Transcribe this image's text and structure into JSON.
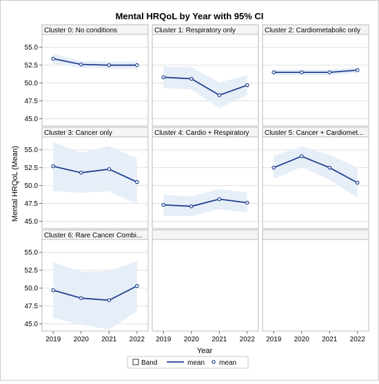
{
  "title": "Mental HRQoL by Year with 95% CI",
  "xlabel": "Year",
  "ylabel": "Mental HRQoL (Mean)",
  "colors": {
    "line": "#1f3f8f",
    "band": "#e6eef8",
    "grid": "#e0e0e0",
    "header_bg": "#f5f5f5",
    "frame": "#b9b9b9"
  },
  "legend": {
    "position": "bottom",
    "items": [
      {
        "label": "Band",
        "kind": "band-square"
      },
      {
        "label": "mean",
        "kind": "line"
      },
      {
        "label": "mean",
        "kind": "marker"
      }
    ]
  },
  "chart_data": {
    "type": "line",
    "panel_layout": "3x3 grid, shared axes",
    "x": [
      2019,
      2020,
      2021,
      2022
    ],
    "xlim": [
      2018.6,
      2022.4
    ],
    "ylim": [
      44,
      56.8
    ],
    "xticks": [
      "2019",
      "2020",
      "2021",
      "2022"
    ],
    "yticks": [
      "45.0",
      "47.5",
      "50.0",
      "52.5",
      "55.0"
    ],
    "ytick_values": [
      45,
      47.5,
      50,
      52.5,
      55
    ],
    "grid": "horizontal",
    "panels": [
      {
        "title": "Cluster 0: No conditions",
        "mean": [
          53.4,
          52.6,
          52.5,
          52.5
        ],
        "lower": [
          52.7,
          52.1,
          52.0,
          52.0
        ],
        "upper": [
          54.1,
          53.1,
          53.0,
          53.0
        ]
      },
      {
        "title": "Cluster 1: Respiratory only",
        "mean": [
          50.8,
          50.6,
          48.3,
          49.7
        ],
        "lower": [
          49.3,
          49.1,
          46.5,
          48.3
        ],
        "upper": [
          52.3,
          52.2,
          50.1,
          51.1
        ]
      },
      {
        "title": "Cluster 2: Cardiometabolic only",
        "mean": [
          51.5,
          51.5,
          51.5,
          51.8
        ],
        "lower": [
          51.1,
          51.1,
          51.1,
          51.4
        ],
        "upper": [
          51.9,
          51.9,
          51.9,
          52.2
        ]
      },
      {
        "title": "Cluster 3: Cancer only",
        "mean": [
          52.7,
          51.8,
          52.3,
          50.5
        ],
        "lower": [
          49.2,
          49.0,
          49.2,
          47.4
        ],
        "upper": [
          56.1,
          54.6,
          55.5,
          53.8
        ]
      },
      {
        "title": "Cluster 4: Cardio + Respiratory",
        "mean": [
          47.3,
          47.1,
          48.1,
          47.6
        ],
        "lower": [
          45.8,
          45.7,
          46.7,
          46.2
        ],
        "upper": [
          48.7,
          48.5,
          49.5,
          49.0
        ]
      },
      {
        "title": "Cluster 5: Cancer + Cardiomet...",
        "mean": [
          52.5,
          54.1,
          52.5,
          50.4
        ],
        "lower": [
          50.9,
          52.6,
          50.8,
          48.3
        ],
        "upper": [
          54.2,
          55.5,
          54.3,
          52.5
        ]
      },
      {
        "title": "Cluster 6: Rare Cancer Combi...",
        "mean": [
          49.7,
          48.6,
          48.3,
          50.3
        ],
        "lower": [
          45.8,
          44.9,
          44.2,
          46.8
        ],
        "upper": [
          53.6,
          52.3,
          52.4,
          53.8
        ]
      },
      {
        "title": "",
        "empty": true
      },
      {
        "title": "",
        "empty": true
      }
    ]
  }
}
